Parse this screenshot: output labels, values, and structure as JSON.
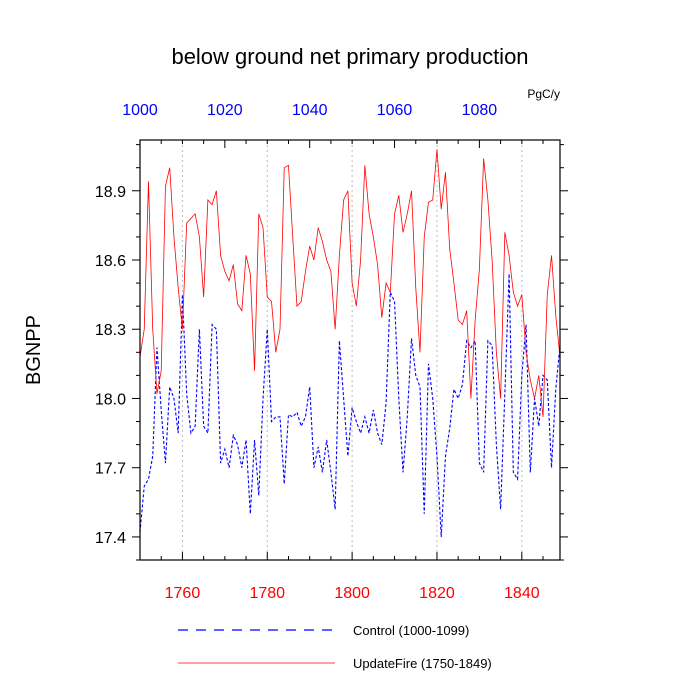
{
  "chart_data": {
    "type": "line",
    "title": "below ground net primary production",
    "ylabel": "BGNPP",
    "units_label": "PgC/y",
    "ylim": [
      17.3,
      19.12
    ],
    "yticks": [
      17.4,
      17.7,
      18.0,
      18.3,
      18.6,
      18.9
    ],
    "ytick_labels": [
      "17.4",
      "17.7",
      "18.0",
      "18.3",
      "18.6",
      "18.9"
    ],
    "bottom_axis": {
      "range": [
        1750,
        1849
      ],
      "ticks": [
        1760,
        1780,
        1800,
        1820,
        1840
      ],
      "tick_labels": [
        "1760",
        "1780",
        "1800",
        "1820",
        "1840"
      ],
      "color": "#ff0000"
    },
    "top_axis": {
      "range": [
        1000,
        1099
      ],
      "ticks": [
        1000,
        1020,
        1040,
        1060,
        1080
      ],
      "tick_labels": [
        "1000",
        "1020",
        "1040",
        "1060",
        "1080"
      ],
      "color": "#0000ff"
    },
    "grid": "vertical dotted lines at bottom-axis major ticks",
    "legend_position": "bottom",
    "series": [
      {
        "name": "Control (1000-1099)",
        "x_axis": "top",
        "color": "#0000ff",
        "dash": "dashed",
        "x_start": 1000,
        "values": [
          17.42,
          17.62,
          17.65,
          17.75,
          18.22,
          17.95,
          17.72,
          18.05,
          18.0,
          17.85,
          18.45,
          18.02,
          17.85,
          17.88,
          18.3,
          17.88,
          17.85,
          18.32,
          18.3,
          17.72,
          17.78,
          17.7,
          17.84,
          17.8,
          17.7,
          17.82,
          17.5,
          17.82,
          17.58,
          18.0,
          18.3,
          17.9,
          17.92,
          17.92,
          17.63,
          17.93,
          17.92,
          17.94,
          17.88,
          17.92,
          18.05,
          17.7,
          17.79,
          17.68,
          17.82,
          17.68,
          17.52,
          18.25,
          18.0,
          17.75,
          17.96,
          17.9,
          17.85,
          17.92,
          17.85,
          17.95,
          17.85,
          17.8,
          17.98,
          18.46,
          18.42,
          18.0,
          17.68,
          17.92,
          18.26,
          18.1,
          18.05,
          17.5,
          18.15,
          18.0,
          17.75,
          17.4,
          17.75,
          17.87,
          18.04,
          18.0,
          18.06,
          18.25,
          18.22,
          18.25,
          17.72,
          17.68,
          18.25,
          18.23,
          17.8,
          17.52,
          18.02,
          18.54,
          17.68,
          17.65,
          18.1,
          18.32,
          17.68,
          18.0,
          17.88,
          18.1,
          18.08,
          17.7,
          18.04,
          18.23
        ]
      },
      {
        "name": "UpdateFire (1750-1849)",
        "x_axis": "bottom",
        "color": "#ff0000",
        "dash": "solid",
        "x_start": 1750,
        "values": [
          18.18,
          18.3,
          18.94,
          18.3,
          18.02,
          18.12,
          18.92,
          19.0,
          18.7,
          18.48,
          18.3,
          18.76,
          18.78,
          18.8,
          18.7,
          18.44,
          18.86,
          18.84,
          18.9,
          18.62,
          18.55,
          18.51,
          18.58,
          18.41,
          18.38,
          18.62,
          18.54,
          18.12,
          18.8,
          18.74,
          18.44,
          18.42,
          18.2,
          18.3,
          19.0,
          19.01,
          18.7,
          18.4,
          18.42,
          18.55,
          18.66,
          18.6,
          18.74,
          18.68,
          18.6,
          18.55,
          18.3,
          18.62,
          18.86,
          18.9,
          18.5,
          18.4,
          18.6,
          19.01,
          18.8,
          18.7,
          18.58,
          18.35,
          18.5,
          18.46,
          18.8,
          18.88,
          18.72,
          18.8,
          18.9,
          18.48,
          18.2,
          18.7,
          18.85,
          18.86,
          19.08,
          18.82,
          18.98,
          18.65,
          18.5,
          18.34,
          18.32,
          18.38,
          18.0,
          18.34,
          18.56,
          19.04,
          18.86,
          18.6,
          18.2,
          18.0,
          18.72,
          18.62,
          18.46,
          18.4,
          18.45,
          18.2,
          18.08,
          18.0,
          18.1,
          17.92,
          18.45,
          18.62,
          18.36,
          18.18
        ]
      }
    ]
  }
}
